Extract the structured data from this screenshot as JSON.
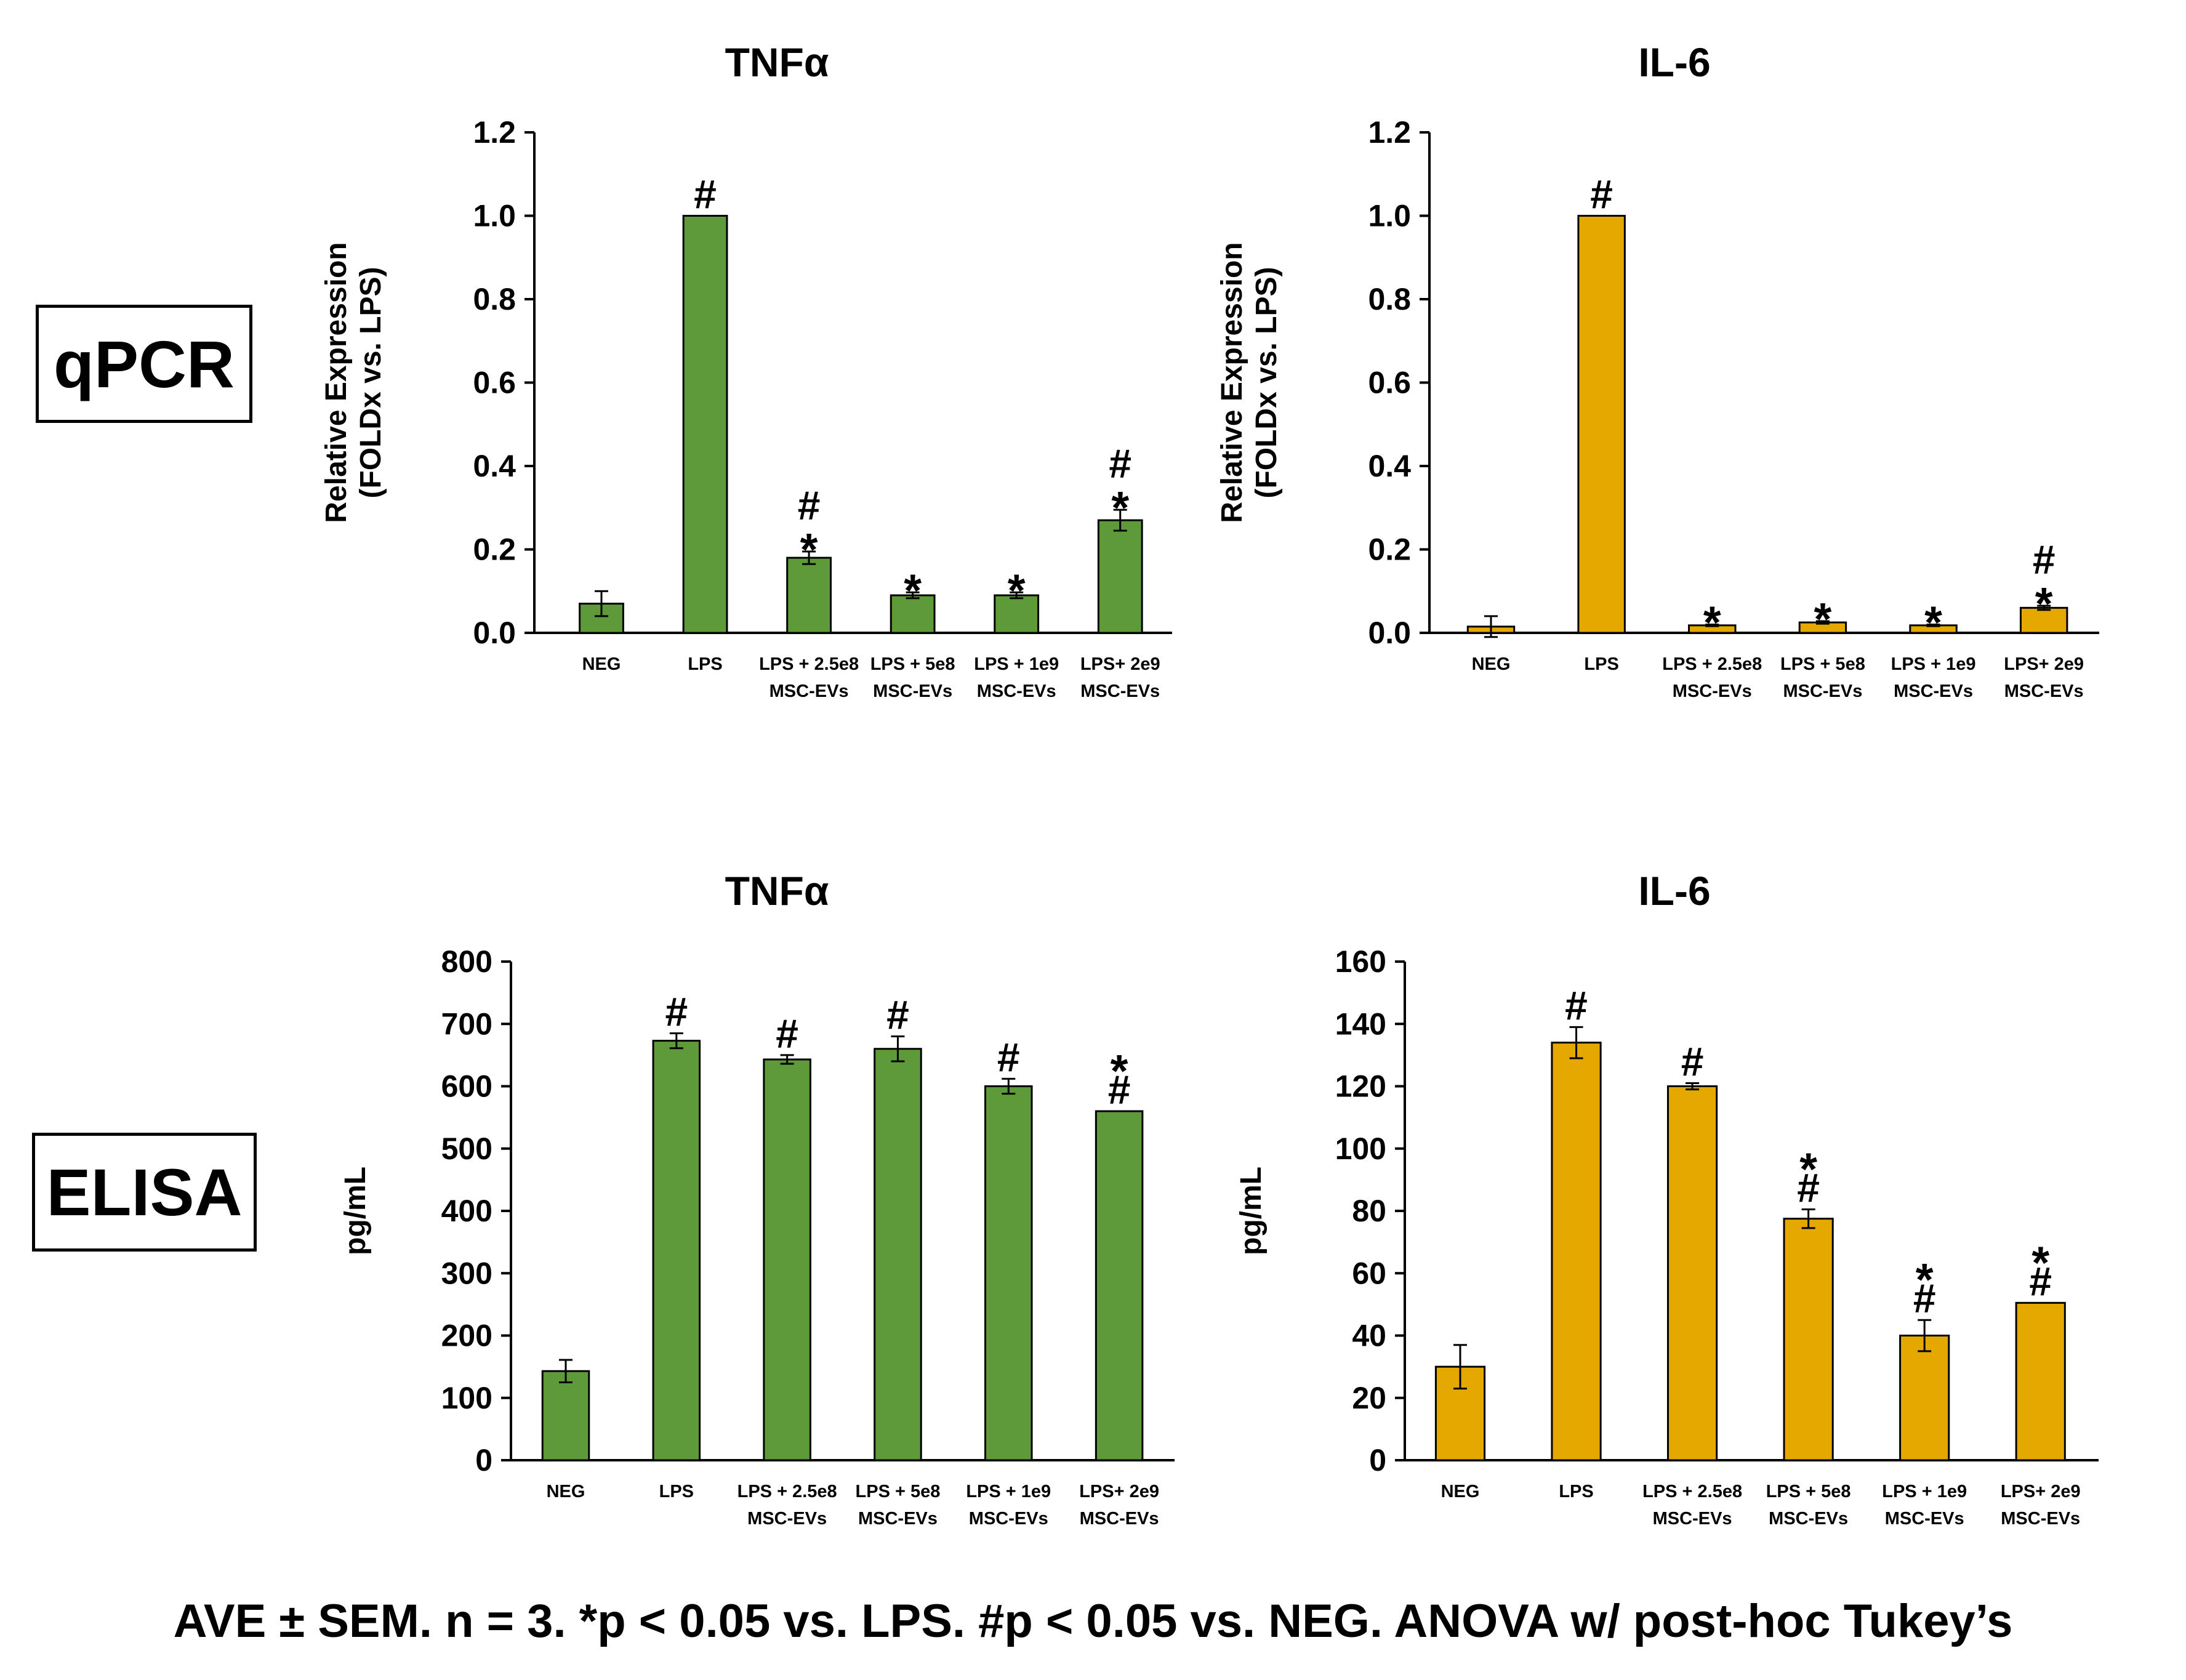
{
  "row_labels": {
    "top": "qPCR",
    "bottom": "ELISA"
  },
  "footnote": "AVE ± SEM. n = 3. *p < 0.05 vs. LPS. #p < 0.05 vs. NEG. ANOVA w/ post-hoc Tukey’s",
  "colors": {
    "green": "#5e9a3a",
    "gold": "#e5a800",
    "axis": "#000000"
  },
  "chart_data": [
    {
      "id": "qpcr-tnfa",
      "type": "bar",
      "title": "TNFα",
      "ylabel": [
        "Relative Expression",
        "(FOLDx vs. LPS)"
      ],
      "xlabel": "",
      "categories": [
        [
          "NEG"
        ],
        [
          "LPS"
        ],
        [
          "LPS + 2.5e8",
          "MSC-EVs"
        ],
        [
          "LPS + 5e8",
          "MSC-EVs"
        ],
        [
          "LPS + 1e9",
          "MSC-EVs"
        ],
        [
          "LPS+ 2e9",
          "MSC-EVs"
        ]
      ],
      "values": [
        0.07,
        1.0,
        0.18,
        0.09,
        0.09,
        0.27
      ],
      "errors": [
        0.03,
        0.0,
        0.015,
        0.007,
        0.007,
        0.025
      ],
      "annotations": [
        [],
        [
          "#"
        ],
        [
          "*",
          "#"
        ],
        [
          "*"
        ],
        [
          "*"
        ],
        [
          "*",
          "#"
        ]
      ],
      "ylim": [
        0,
        1.2
      ],
      "yticks": [
        "0.0",
        "0.2",
        "0.4",
        "0.6",
        "0.8",
        "1.0",
        "1.2"
      ],
      "color": "green"
    },
    {
      "id": "qpcr-il6",
      "type": "bar",
      "title": "IL-6",
      "ylabel": [
        "Relative Expression",
        "(FOLDx vs. LPS)"
      ],
      "xlabel": "",
      "categories": [
        [
          "NEG"
        ],
        [
          "LPS"
        ],
        [
          "LPS + 2.5e8",
          "MSC-EVs"
        ],
        [
          "LPS + 5e8",
          "MSC-EVs"
        ],
        [
          "LPS + 1e9",
          "MSC-EVs"
        ],
        [
          "LPS+ 2e9",
          "MSC-EVs"
        ]
      ],
      "values": [
        0.015,
        1.0,
        0.018,
        0.025,
        0.018,
        0.06
      ],
      "errors": [
        0.025,
        0.0,
        0.002,
        0.003,
        0.002,
        0.005
      ],
      "annotations": [
        [],
        [
          "#"
        ],
        [
          "*"
        ],
        [
          "*"
        ],
        [
          "*"
        ],
        [
          "*",
          "#"
        ]
      ],
      "ylim": [
        0,
        1.2
      ],
      "yticks": [
        "0.0",
        "0.2",
        "0.4",
        "0.6",
        "0.8",
        "1.0",
        "1.2"
      ],
      "color": "gold"
    },
    {
      "id": "elisa-tnfa",
      "type": "bar",
      "title": "TNFα",
      "ylabel": [
        "pg/mL"
      ],
      "xlabel": "",
      "categories": [
        [
          "NEG"
        ],
        [
          "LPS"
        ],
        [
          "LPS + 2.5e8",
          "MSC-EVs"
        ],
        [
          "LPS + 5e8",
          "MSC-EVs"
        ],
        [
          "LPS + 1e9",
          "MSC-EVs"
        ],
        [
          "LPS+ 2e9",
          "MSC-EVs"
        ]
      ],
      "values": [
        143,
        673,
        643,
        660,
        600,
        560
      ],
      "errors": [
        18,
        12,
        7,
        20,
        12,
        0
      ],
      "annotations": [
        [],
        [
          "#"
        ],
        [
          "#"
        ],
        [
          "#"
        ],
        [
          "#"
        ],
        [
          "#",
          "*"
        ]
      ],
      "ylim": [
        0,
        800
      ],
      "yticks": [
        "0",
        "100",
        "200",
        "300",
        "400",
        "500",
        "600",
        "700",
        "800"
      ],
      "color": "green"
    },
    {
      "id": "elisa-il6",
      "type": "bar",
      "title": "IL-6",
      "ylabel": [
        "pg/mL"
      ],
      "xlabel": "",
      "categories": [
        [
          "NEG"
        ],
        [
          "LPS"
        ],
        [
          "LPS + 2.5e8",
          "MSC-EVs"
        ],
        [
          "LPS + 5e8",
          "MSC-EVs"
        ],
        [
          "LPS + 1e9",
          "MSC-EVs"
        ],
        [
          "LPS+ 2e9",
          "MSC-EVs"
        ]
      ],
      "values": [
        30,
        134,
        120,
        77.5,
        40,
        50.5
      ],
      "errors": [
        7,
        5,
        1,
        3,
        5,
        0
      ],
      "annotations": [
        [],
        [
          "#"
        ],
        [
          "#"
        ],
        [
          "#",
          "*"
        ],
        [
          "#",
          "*"
        ],
        [
          "#",
          "*"
        ]
      ],
      "ylim": [
        0,
        160
      ],
      "yticks": [
        "0",
        "20",
        "40",
        "60",
        "80",
        "100",
        "120",
        "140",
        "160"
      ],
      "color": "gold"
    }
  ]
}
